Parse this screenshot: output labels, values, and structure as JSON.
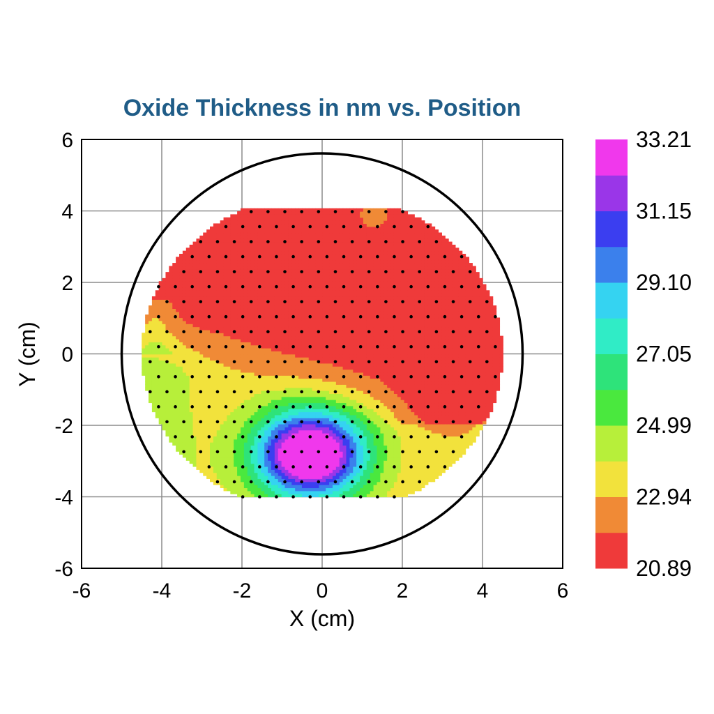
{
  "chart_data": {
    "type": "heatmap",
    "title": "Oxide Thickness in nm vs. Position",
    "xlabel": "X (cm)",
    "ylabel": "Y (cm)",
    "xlim": [
      -6,
      6
    ],
    "ylim": [
      -6,
      6
    ],
    "xticks": [
      "-6",
      "-4",
      "-2",
      "0",
      "2",
      "4",
      "6"
    ],
    "yticks": [
      "6",
      "4",
      "2",
      "0",
      "-2",
      "-4",
      "-6"
    ],
    "grid": true,
    "wafer_radius": 5,
    "measurement_region": {
      "y_min": -4,
      "y_max": 4,
      "radius": 4.5,
      "spacing": 0.42
    },
    "colorbar": {
      "levels": [
        20.89,
        21.92,
        22.94,
        23.97,
        24.99,
        26.02,
        27.05,
        28.07,
        29.1,
        30.12,
        31.15,
        32.18,
        33.21
      ],
      "tick_labels": [
        "33.21",
        "31.15",
        "29.10",
        "27.05",
        "24.99",
        "22.94",
        "20.89"
      ],
      "colors": [
        "#ef3a3a",
        "#f08a36",
        "#f2e23c",
        "#b7ef3a",
        "#4ae83e",
        "#2ee37a",
        "#30ecc6",
        "#35d3f1",
        "#3b80ec",
        "#3b3ef0",
        "#9a36e8",
        "#f038ec"
      ]
    },
    "features": [
      {
        "name": "thickness maximum",
        "x": -0.3,
        "y": -2.8,
        "value": 33.21
      },
      {
        "name": "upper plateau",
        "y_range": [
          0.5,
          4.1
        ],
        "value": 20.89
      }
    ]
  }
}
